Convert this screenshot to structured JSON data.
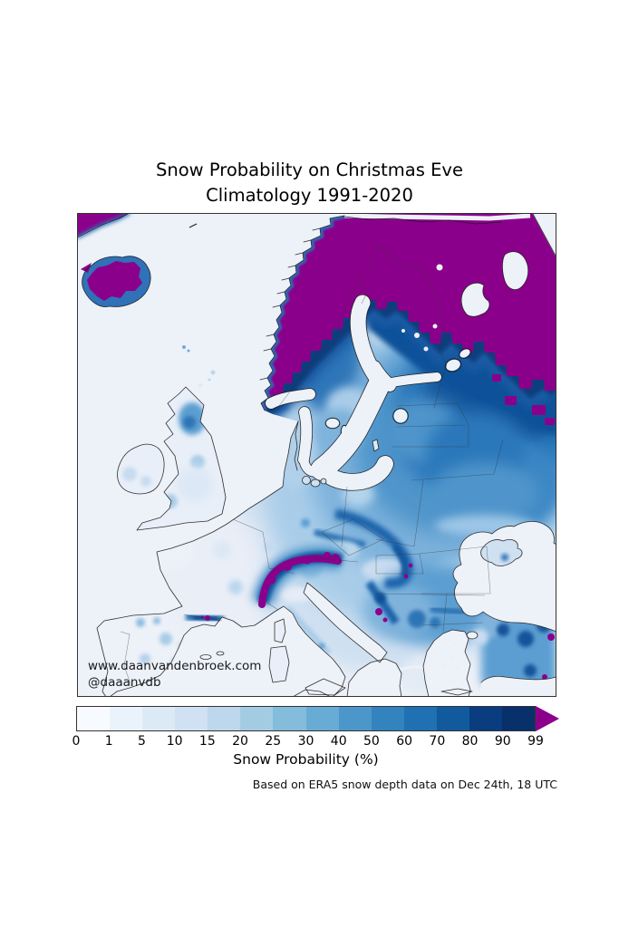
{
  "title": {
    "line1": "Snow Probability on Christmas Eve",
    "line2": "Climatology 1991-2020"
  },
  "watermark": {
    "line1": "www.daanvandenbroek.com",
    "line2": "@daaanvdb"
  },
  "colorbar": {
    "label": "Snow Probability (%)",
    "tick_labels": [
      "0",
      "1",
      "5",
      "10",
      "15",
      "20",
      "25",
      "30",
      "40",
      "50",
      "60",
      "70",
      "80",
      "90",
      "99"
    ],
    "segment_colors": [
      "#f7fbff",
      "#eaf3fb",
      "#dceaf6",
      "#cfe1f2",
      "#bdd7ec",
      "#a3cce3",
      "#84bcdb",
      "#68acd5",
      "#4b97ca",
      "#3383be",
      "#2070b4",
      "#115a9e",
      "#093d7f",
      "#08306b"
    ],
    "overflow_color": "#8b008b",
    "border_color": "#333333"
  },
  "attribution": "Based on ERA5 snow depth data on Dec 24th, 18 UTC",
  "map": {
    "sea_color": "#edf1f8",
    "high_color": "#8b008b",
    "deep_blue": "#08306b",
    "frame_color": "#333333"
  }
}
